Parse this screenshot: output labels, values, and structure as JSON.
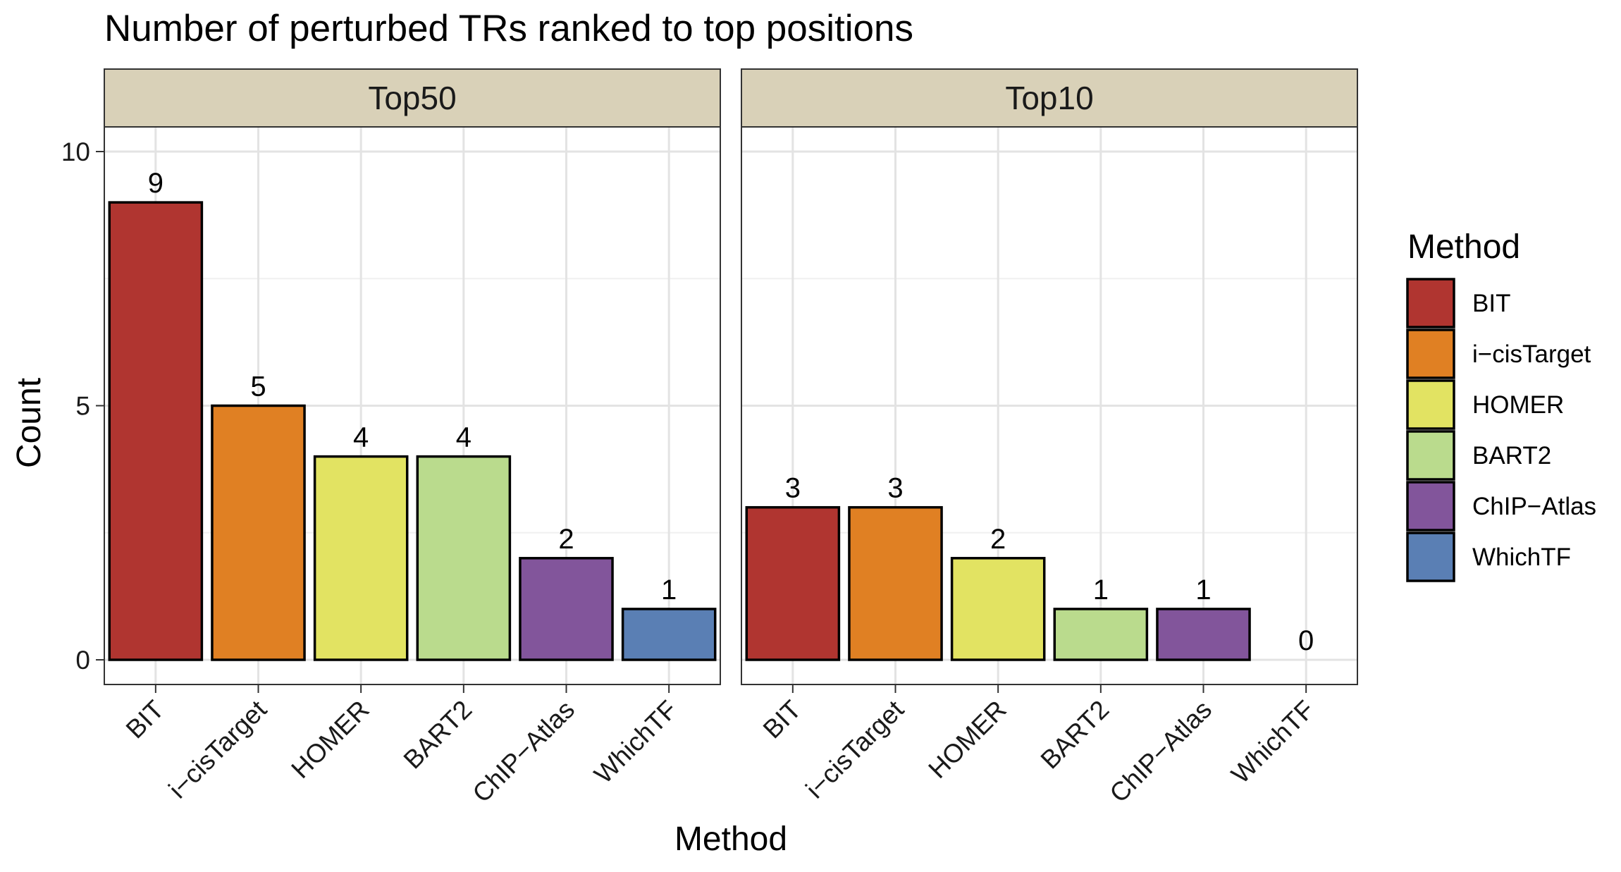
{
  "chart_data": {
    "type": "bar",
    "title": "Number of perturbed TRs ranked to top positions",
    "xlabel": "Method",
    "ylabel": "Count",
    "ylim": [
      0,
      10.5
    ],
    "yticks": [
      0,
      5,
      10
    ],
    "grid": true,
    "legend": {
      "title": "Method",
      "placement": "right",
      "entries": [
        "BIT",
        "i−cisTarget",
        "HOMER",
        "BART2",
        "ChIP−Atlas",
        "WhichTF"
      ]
    },
    "categories": [
      "BIT",
      "i−cisTarget",
      "HOMER",
      "BART2",
      "ChIP−Atlas",
      "WhichTF"
    ],
    "colors": [
      "#b03530",
      "#e08023",
      "#e2e362",
      "#badb8d",
      "#82559b",
      "#5a7fb4"
    ],
    "panels": [
      {
        "name": "Top50",
        "values": [
          9,
          5,
          4,
          4,
          2,
          1
        ]
      },
      {
        "name": "Top10",
        "values": [
          3,
          3,
          2,
          1,
          1,
          0
        ]
      }
    ]
  }
}
